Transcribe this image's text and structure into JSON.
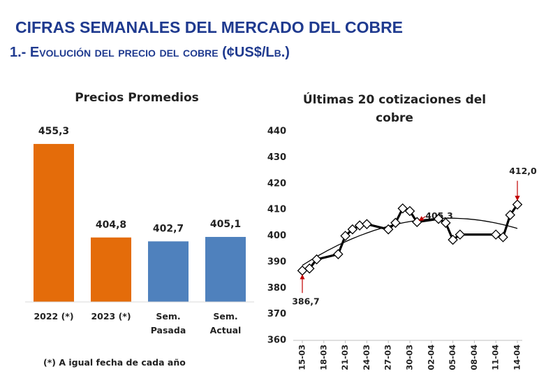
{
  "header": {
    "title": "CIFRAS SEMANALES DEL MERCADO DEL COBRE",
    "subtitle": "1.- Evolución del precio del cobre (¢US$/Lb.)"
  },
  "chart_data": [
    {
      "type": "bar",
      "title": "Precios Promedios",
      "categories": [
        "2022 (*)",
        "2023 (*)",
        "Sem. Pasada",
        "Sem. Actual"
      ],
      "values": [
        455.3,
        404.8,
        402.7,
        405.1
      ],
      "value_labels": [
        "455,3",
        "404,8",
        "402,7",
        "405,1"
      ],
      "colors": [
        "#e46c0a",
        "#e46c0a",
        "#4f81bd",
        "#4f81bd"
      ],
      "ylim": [
        370,
        460
      ],
      "note": "(*) A igual fecha de cada año"
    },
    {
      "type": "line",
      "title": "Últimas 20 cotizaciones del cobre",
      "x": [
        "15-03",
        "16-03",
        "17-03",
        "20-03",
        "21-03",
        "22-03",
        "23-03",
        "24-03",
        "27-03",
        "28-03",
        "29-03",
        "30-03",
        "31-03",
        "03-04",
        "04-04",
        "05-04",
        "06-04",
        "11-04",
        "12-04",
        "13-04",
        "14-04"
      ],
      "values": [
        386.7,
        387.5,
        391,
        393,
        400,
        402.5,
        404,
        404.5,
        402.5,
        405,
        410.5,
        409.5,
        405.3,
        406.5,
        405,
        398.5,
        400.5,
        400.5,
        399.5,
        408,
        412.0
      ],
      "value_labels": [
        "386,7",
        null,
        null,
        null,
        null,
        null,
        null,
        null,
        null,
        null,
        null,
        null,
        "405,3",
        null,
        null,
        null,
        null,
        null,
        null,
        null,
        "412,0"
      ],
      "color": "#000000",
      "xticks": [
        "15-03",
        "18-03",
        "21-03",
        "24-03",
        "27-03",
        "30-03",
        "02-04",
        "05-04",
        "08-04",
        "11-04",
        "14-04"
      ],
      "ylim": [
        360,
        440
      ],
      "yticks": [
        360,
        370,
        380,
        390,
        400,
        410,
        420,
        430,
        440
      ],
      "trendline": "poly2"
    }
  ]
}
